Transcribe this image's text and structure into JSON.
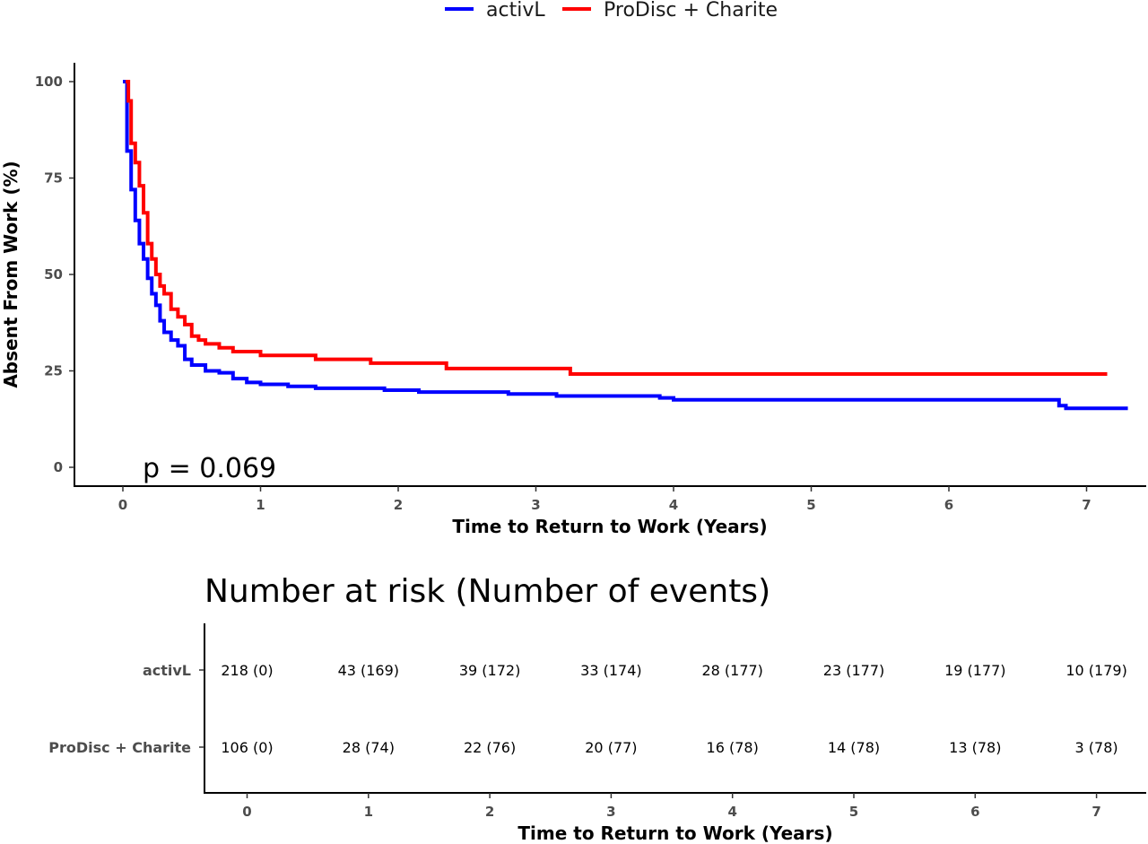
{
  "chart_data": [
    {
      "type": "line",
      "step": true,
      "xlabel": "Time to Return to Work (Years)",
      "ylabel": "Absent From Work (%)",
      "xlim": [
        -0.35,
        7.45
      ],
      "ylim": [
        -5,
        105
      ],
      "x_ticks": [
        "0",
        "1",
        "2",
        "3",
        "4",
        "5",
        "6",
        "7"
      ],
      "y_ticks": [
        "0",
        "25",
        "50",
        "75",
        "100"
      ],
      "grid": false,
      "legend_position": "top",
      "annotation": "p = 0.069",
      "series": [
        {
          "name": "activL",
          "color": "#0000ff",
          "x": [
            0,
            0.03,
            0.06,
            0.09,
            0.12,
            0.15,
            0.18,
            0.21,
            0.24,
            0.27,
            0.3,
            0.35,
            0.4,
            0.45,
            0.5,
            0.6,
            0.7,
            0.8,
            0.9,
            1.0,
            1.2,
            1.4,
            1.9,
            2.15,
            2.8,
            3.15,
            3.9,
            4.0,
            6.8,
            6.85,
            7.3
          ],
          "y": [
            100,
            82,
            72,
            64,
            58,
            54,
            49,
            45,
            42,
            38,
            35,
            33,
            31.5,
            28,
            26.5,
            25,
            24.5,
            23,
            22,
            21.5,
            21,
            20.5,
            20,
            19.5,
            19,
            18.5,
            18,
            17.5,
            16,
            15.3,
            15.3
          ]
        },
        {
          "name": "ProDisc + Charite",
          "color": "#ff0000",
          "x": [
            0.02,
            0.04,
            0.06,
            0.09,
            0.12,
            0.15,
            0.18,
            0.21,
            0.24,
            0.27,
            0.3,
            0.35,
            0.4,
            0.45,
            0.5,
            0.55,
            0.6,
            0.7,
            0.8,
            1.0,
            1.4,
            1.8,
            2.35,
            3.25,
            7.15
          ],
          "y": [
            100,
            95,
            84,
            79,
            73,
            66,
            58,
            54,
            50,
            47,
            45,
            41,
            39,
            37,
            34,
            33,
            32,
            31,
            30,
            29,
            28,
            27,
            25.6,
            24.2,
            24.2
          ]
        }
      ]
    },
    {
      "type": "table",
      "title": "Number at risk (Number of events)",
      "xlabel": "Time to Return to Work (Years)",
      "columns": [
        "0",
        "1",
        "2",
        "3",
        "4",
        "5",
        "6",
        "7"
      ],
      "rows": [
        {
          "label": "activL",
          "values": [
            "218 (0)",
            "43 (169)",
            "39 (172)",
            "33 (174)",
            "28 (177)",
            "23 (177)",
            "19 (177)",
            "10 (179)"
          ]
        },
        {
          "label": "ProDisc + Charite",
          "values": [
            "106 (0)",
            "28 (74)",
            "22 (76)",
            "20 (77)",
            "16 (78)",
            "14 (78)",
            "13 (78)",
            "3 (78)"
          ]
        }
      ]
    }
  ]
}
